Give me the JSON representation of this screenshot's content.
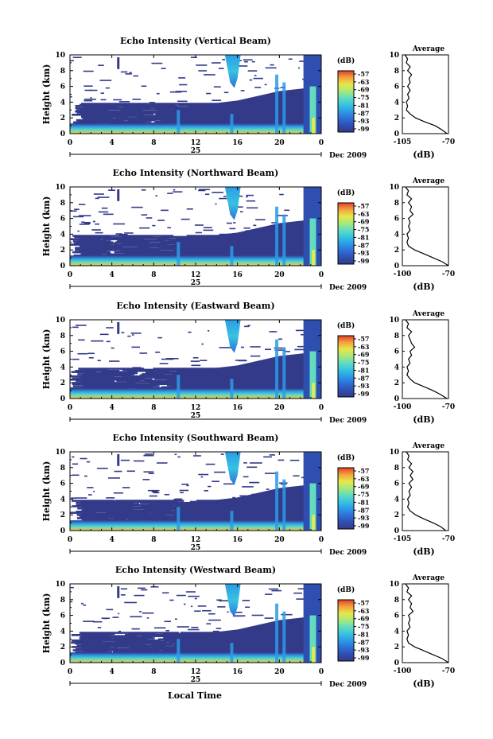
{
  "figure": {
    "xlabel": "Local Time"
  },
  "colors": {
    "background_low": "#333a8a",
    "scale": [
      "#333a8a",
      "#2f4fb0",
      "#2f6fd8",
      "#2d9be6",
      "#36c3e0",
      "#62dcc0",
      "#a8e87a",
      "#e6e84a",
      "#f6a23c",
      "#e0402a"
    ]
  },
  "chart_data": [
    {
      "type": "heatmap",
      "title": "Echo Intensity (Vertical Beam)",
      "ylabel": "Height (km)",
      "ylim": [
        0,
        10
      ],
      "yticks": [
        "0",
        "2",
        "4",
        "6",
        "8",
        "10"
      ],
      "xlim": [
        0,
        24
      ],
      "xticks": [
        "0",
        "4",
        "8",
        "12",
        "16",
        "20",
        "0"
      ],
      "date_day": "25",
      "date_label": "Dec 2009",
      "colorbar": {
        "unit": "(dB)",
        "ticks": [
          "-57",
          "-63",
          "-69",
          "-75",
          "-81",
          "-87",
          "-93",
          "-99"
        ]
      },
      "average": {
        "title": "Average",
        "xlabel": "(dB)",
        "xticks": [
          "-105",
          "-70"
        ],
        "xlim": [
          -105,
          -70
        ],
        "ylim": [
          0,
          10
        ],
        "profile": [
          [
            -71,
            0
          ],
          [
            -75,
            0.5
          ],
          [
            -80,
            1
          ],
          [
            -88,
            1.5
          ],
          [
            -95,
            2
          ],
          [
            -99,
            2.5
          ],
          [
            -102,
            3
          ],
          [
            -101,
            3.5
          ],
          [
            -102,
            4
          ],
          [
            -100,
            4.5
          ],
          [
            -101,
            5
          ],
          [
            -99,
            5.5
          ],
          [
            -101,
            6
          ],
          [
            -99,
            6.5
          ],
          [
            -100,
            7
          ],
          [
            -98,
            7.5
          ],
          [
            -101,
            8
          ],
          [
            -99,
            8.5
          ],
          [
            -102,
            9
          ],
          [
            -101,
            9.5
          ],
          [
            -103,
            10
          ]
        ]
      }
    },
    {
      "type": "heatmap",
      "title": "Echo Intensity (Northward Beam)",
      "ylabel": "Height (km)",
      "ylim": [
        0,
        10
      ],
      "yticks": [
        "0",
        "2",
        "4",
        "6",
        "8",
        "10"
      ],
      "xlim": [
        0,
        24
      ],
      "xticks": [
        "0",
        "4",
        "8",
        "12",
        "16",
        "20",
        "0"
      ],
      "date_day": "25",
      "date_label": "Dec 2009",
      "colorbar": {
        "unit": "(dB)",
        "ticks": [
          "-57",
          "-63",
          "-69",
          "-75",
          "-81",
          "-87",
          "-93",
          "-99"
        ]
      },
      "average": {
        "title": "Average",
        "xlabel": "(dB)",
        "xticks": [
          "-100",
          "-70"
        ],
        "xlim": [
          -100,
          -70
        ],
        "ylim": [
          0,
          10
        ],
        "profile": [
          [
            -70,
            0
          ],
          [
            -74,
            0.5
          ],
          [
            -80,
            1
          ],
          [
            -86,
            1.5
          ],
          [
            -92,
            2
          ],
          [
            -96,
            2.5
          ],
          [
            -97,
            3
          ],
          [
            -96,
            3.5
          ],
          [
            -97,
            4
          ],
          [
            -95,
            4.5
          ],
          [
            -96,
            5
          ],
          [
            -95,
            5.5
          ],
          [
            -96,
            6
          ],
          [
            -93,
            6.5
          ],
          [
            -95,
            7
          ],
          [
            -94,
            7.5
          ],
          [
            -96,
            8
          ],
          [
            -94,
            8.5
          ],
          [
            -97,
            9
          ],
          [
            -96,
            9.5
          ],
          [
            -98,
            10
          ]
        ]
      }
    },
    {
      "type": "heatmap",
      "title": "Echo Intensity (Eastward Beam)",
      "ylabel": "Height (km)",
      "ylim": [
        0,
        10
      ],
      "yticks": [
        "0",
        "2",
        "4",
        "6",
        "8",
        "10"
      ],
      "xlim": [
        0,
        24
      ],
      "xticks": [
        "0",
        "4",
        "8",
        "12",
        "16",
        "20",
        "0"
      ],
      "date_day": "25",
      "date_label": "Dec 2009",
      "colorbar": {
        "unit": "(dB)",
        "ticks": [
          "-57",
          "-63",
          "-69",
          "-75",
          "-81",
          "-87",
          "-93",
          "-99"
        ]
      },
      "average": {
        "title": "Average",
        "xlabel": "(dB)",
        "xticks": [
          "-100",
          "-70"
        ],
        "xlim": [
          -100,
          -70
        ],
        "ylim": [
          0,
          10
        ],
        "profile": [
          [
            -71,
            0
          ],
          [
            -75,
            0.5
          ],
          [
            -80,
            1
          ],
          [
            -86,
            1.5
          ],
          [
            -92,
            2
          ],
          [
            -95,
            2.5
          ],
          [
            -97,
            3
          ],
          [
            -96,
            3.5
          ],
          [
            -97,
            4
          ],
          [
            -95,
            4.5
          ],
          [
            -96,
            5
          ],
          [
            -94,
            5.5
          ],
          [
            -95,
            6
          ],
          [
            -92,
            6.5
          ],
          [
            -94,
            7
          ],
          [
            -95,
            7.5
          ],
          [
            -96,
            8
          ],
          [
            -94,
            8.5
          ],
          [
            -97,
            9
          ],
          [
            -96,
            9.5
          ],
          [
            -98,
            10
          ]
        ]
      }
    },
    {
      "type": "heatmap",
      "title": "Echo Intensity (Southward Beam)",
      "ylabel": "Height (km)",
      "ylim": [
        0,
        10
      ],
      "yticks": [
        "0",
        "2",
        "4",
        "6",
        "8",
        "10"
      ],
      "xlim": [
        0,
        24
      ],
      "xticks": [
        "0",
        "4",
        "8",
        "12",
        "16",
        "20",
        "0"
      ],
      "date_day": "25",
      "date_label": "Dec 2009",
      "colorbar": {
        "unit": "(dB)",
        "ticks": [
          "-57",
          "-63",
          "-69",
          "-75",
          "-81",
          "-87",
          "-93",
          "-99"
        ]
      },
      "average": {
        "title": "Average",
        "xlabel": "(dB)",
        "xticks": [
          "-105",
          "-70"
        ],
        "xlim": [
          -105,
          -70
        ],
        "ylim": [
          0,
          10
        ],
        "profile": [
          [
            -72,
            0
          ],
          [
            -76,
            0.5
          ],
          [
            -82,
            1
          ],
          [
            -89,
            1.5
          ],
          [
            -95,
            2
          ],
          [
            -99,
            2.5
          ],
          [
            -101,
            3
          ],
          [
            -100,
            3.5
          ],
          [
            -101,
            4
          ],
          [
            -99,
            4.5
          ],
          [
            -100,
            5
          ],
          [
            -98,
            5.5
          ],
          [
            -100,
            6
          ],
          [
            -97,
            6.5
          ],
          [
            -99,
            7
          ],
          [
            -97,
            7.5
          ],
          [
            -100,
            8
          ],
          [
            -98,
            8.5
          ],
          [
            -101,
            9
          ],
          [
            -100,
            9.5
          ],
          [
            -102,
            10
          ]
        ]
      }
    },
    {
      "type": "heatmap",
      "title": "Echo Intensity (Westward Beam)",
      "ylabel": "Height (km)",
      "ylim": [
        0,
        10
      ],
      "yticks": [
        "0",
        "2",
        "4",
        "6",
        "8",
        "10"
      ],
      "xlim": [
        0,
        24
      ],
      "xticks": [
        "0",
        "4",
        "8",
        "12",
        "16",
        "20",
        "0"
      ],
      "date_day": "25",
      "date_label": "Dec 2009",
      "colorbar": {
        "unit": "(dB)",
        "ticks": [
          "-57",
          "-63",
          "-69",
          "-75",
          "-81",
          "-87",
          "-93",
          "-99"
        ]
      },
      "average": {
        "title": "Average",
        "xlabel": "(dB)",
        "xticks": [
          "-100",
          "-70"
        ],
        "xlim": [
          -100,
          -70
        ],
        "ylim": [
          0,
          10
        ],
        "profile": [
          [
            -70,
            0
          ],
          [
            -74,
            0.5
          ],
          [
            -80,
            1
          ],
          [
            -86,
            1.5
          ],
          [
            -92,
            2
          ],
          [
            -96,
            2.5
          ],
          [
            -97,
            3
          ],
          [
            -96,
            3.5
          ],
          [
            -97,
            4
          ],
          [
            -95,
            4.5
          ],
          [
            -96,
            5
          ],
          [
            -95,
            5.5
          ],
          [
            -96,
            6
          ],
          [
            -93,
            6.5
          ],
          [
            -95,
            7
          ],
          [
            -94,
            7.5
          ],
          [
            -96,
            8
          ],
          [
            -94,
            8.5
          ],
          [
            -97,
            9
          ],
          [
            -96,
            9.5
          ],
          [
            -98,
            10
          ]
        ]
      }
    }
  ]
}
